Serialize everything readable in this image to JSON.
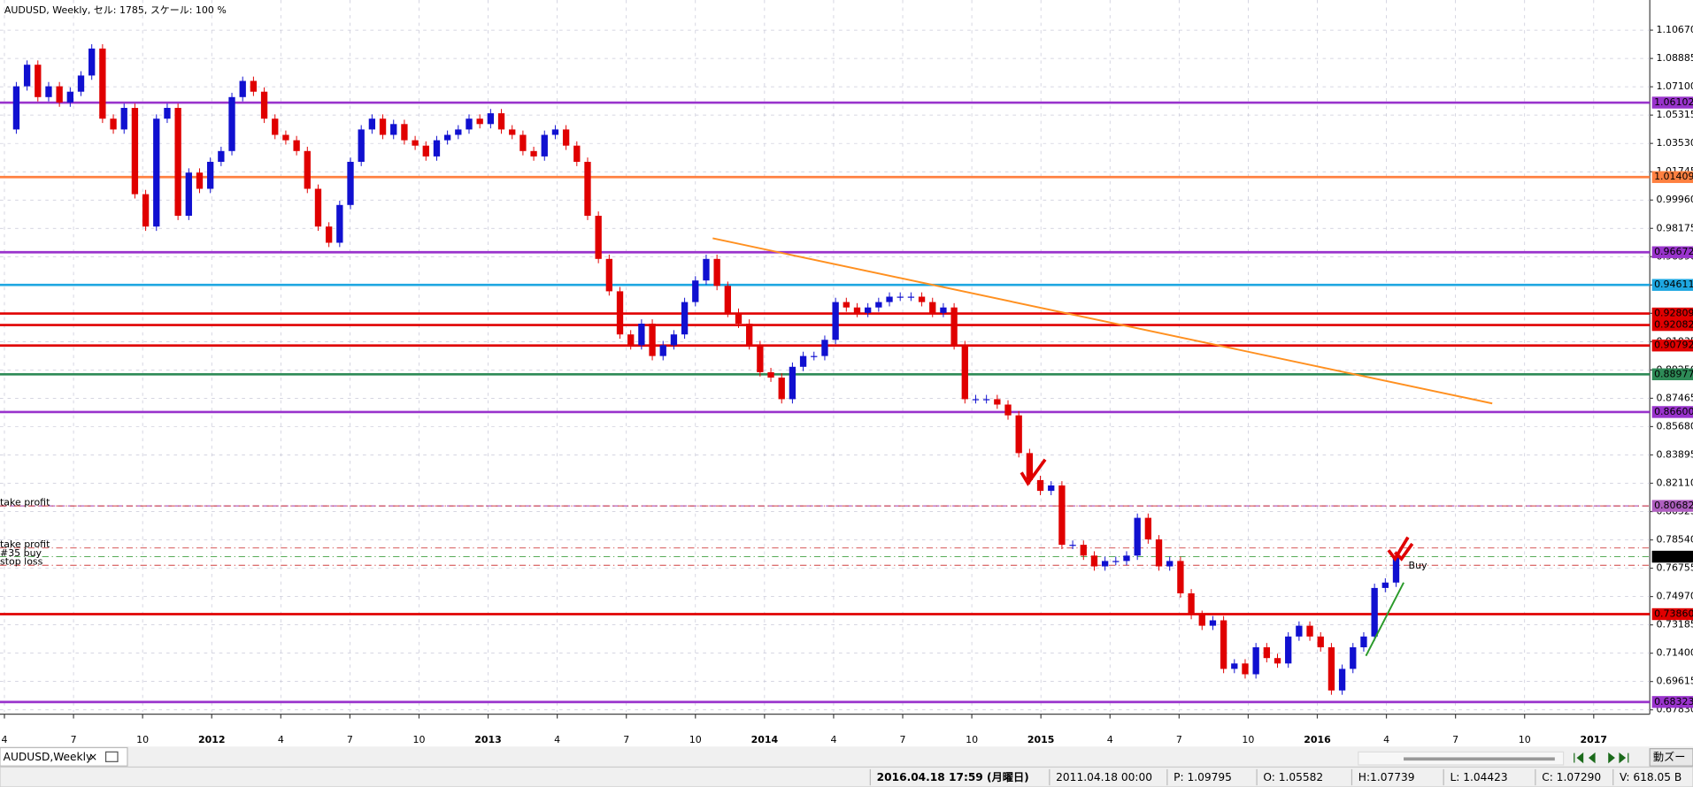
{
  "chart_data": {
    "type": "candlestick",
    "title": "AUDUSD, Weekly, セル: 1785, スケール: 100 %",
    "up_color": "#1010d0",
    "down_color": "#e00000",
    "xlim": [
      2011.234,
      2017.203
    ],
    "ylim": [
      0.6769,
      1.1257
    ],
    "grid": true,
    "xticks": [
      {
        "value": 2011.25,
        "label": "4"
      },
      {
        "value": 2011.5,
        "label": "7"
      },
      {
        "value": 2011.75,
        "label": "10"
      },
      2012,
      {
        "value": 2012.25,
        "label": "4"
      },
      {
        "value": 2012.5,
        "label": "7"
      },
      {
        "value": 2012.75,
        "label": "10"
      },
      2013,
      {
        "value": 2013.25,
        "label": "4"
      },
      {
        "value": 2013.5,
        "label": "7"
      },
      {
        "value": 2013.75,
        "label": "10"
      },
      2014,
      {
        "value": 2014.25,
        "label": "4"
      },
      {
        "value": 2014.5,
        "label": "7"
      },
      {
        "value": 2014.75,
        "label": "10"
      },
      2015,
      {
        "value": 2015.25,
        "label": "4"
      },
      {
        "value": 2015.5,
        "label": "7"
      },
      {
        "value": 2015.75,
        "label": "10"
      },
      2016,
      {
        "value": 2016.25,
        "label": "4"
      },
      {
        "value": 2016.5,
        "label": "7"
      },
      {
        "value": 2016.75,
        "label": "10"
      },
      2017
    ],
    "yticks": [
      {
        "value": 1.1067,
        "label": "1.10670"
      },
      {
        "value": 1.08885,
        "label": "1.08885"
      },
      {
        "value": 1.071,
        "label": "1.07100"
      },
      {
        "value": 1.05315,
        "label": "1.05315"
      },
      {
        "value": 1.0353,
        "label": "1.03530"
      },
      {
        "value": 1.01745,
        "label": "1.01745"
      },
      {
        "value": 0.9996,
        "label": "0.99960"
      },
      {
        "value": 0.98175,
        "label": "0.98175"
      },
      {
        "value": 0.9639,
        "label": "0.96390"
      },
      {
        "value": 0.94605,
        "label": "0.94605"
      },
      {
        "value": 0.9282,
        "label": "0.92820"
      },
      {
        "value": 0.91035,
        "label": "0.91035"
      },
      {
        "value": 0.8925,
        "label": "0.89250"
      },
      {
        "value": 0.87465,
        "label": "0.87465"
      },
      {
        "value": 0.8568,
        "label": "0.85680"
      },
      {
        "value": 0.83895,
        "label": "0.83895"
      },
      {
        "value": 0.8211,
        "label": "0.82110"
      },
      {
        "value": 0.80325,
        "label": "0.80325"
      },
      {
        "value": 0.7854,
        "label": "0.78540"
      },
      {
        "value": 0.76755,
        "label": "0.76755"
      },
      {
        "value": 0.7497,
        "label": "0.74970"
      },
      {
        "value": 0.73185,
        "label": "0.73185"
      },
      {
        "value": 0.714,
        "label": "0.71400"
      },
      {
        "value": 0.69615,
        "label": "0.69615"
      },
      {
        "value": 0.6783,
        "label": "0.67830"
      }
    ],
    "x": [
      2011.254,
      2011.293,
      2011.332,
      2011.371,
      2011.41,
      2011.449,
      2011.488,
      2011.527,
      2011.566,
      2011.605,
      2011.644,
      2011.683,
      2011.722,
      2011.761,
      2011.8,
      2011.839,
      2011.878,
      2011.917,
      2011.956,
      2011.995,
      2012.034,
      2012.073,
      2012.112,
      2012.151,
      2012.19,
      2012.229,
      2012.268,
      2012.307,
      2012.346,
      2012.385,
      2012.424,
      2012.463,
      2012.502,
      2012.541,
      2012.58,
      2012.619,
      2012.658,
      2012.697,
      2012.736,
      2012.775,
      2012.814,
      2012.853,
      2012.892,
      2012.931,
      2012.97,
      2013.009,
      2013.048,
      2013.087,
      2013.126,
      2013.165,
      2013.204,
      2013.243,
      2013.282,
      2013.321,
      2013.36,
      2013.399,
      2013.438,
      2013.477,
      2013.516,
      2013.555,
      2013.594,
      2013.633,
      2013.672,
      2013.711,
      2013.75,
      2013.789,
      2013.828,
      2013.867,
      2013.906,
      2013.945,
      2013.984,
      2014.023,
      2014.062,
      2014.101,
      2014.14,
      2014.179,
      2014.218,
      2014.257,
      2014.296,
      2014.335,
      2014.374,
      2014.413,
      2014.452,
      2014.491,
      2014.53,
      2014.569,
      2014.608,
      2014.647,
      2014.686,
      2014.725,
      2014.764,
      2014.803,
      2014.842,
      2014.881,
      2014.92,
      2014.959,
      2014.998,
      2015.037,
      2015.076,
      2015.115,
      2015.154,
      2015.193,
      2015.232,
      2015.271,
      2015.31,
      2015.349,
      2015.388,
      2015.427,
      2015.466,
      2015.505,
      2015.544,
      2015.583,
      2015.622,
      2015.661,
      2015.7,
      2015.739,
      2015.778,
      2015.817,
      2015.856,
      2015.895,
      2015.934,
      2015.973,
      2016.012,
      2016.051,
      2016.09,
      2016.129,
      2016.168,
      2016.207,
      2016.246,
      2016.285
    ],
    "close": [
      1.0441,
      1.0713,
      1.0849,
      1.0645,
      1.0713,
      1.0611,
      1.0679,
      1.0781,
      1.0951,
      1.0509,
      1.0441,
      1.0577,
      1.0033,
      0.9829,
      1.0509,
      1.0577,
      0.9897,
      1.0169,
      1.0067,
      1.0237,
      1.0305,
      1.0645,
      1.0747,
      1.0679,
      1.0509,
      1.0407,
      1.0373,
      1.0305,
      1.0067,
      0.9829,
      0.9727,
      0.9965,
      1.0237,
      1.0441,
      1.0509,
      1.0407,
      1.0475,
      1.0373,
      1.0339,
      1.0271,
      1.0373,
      1.0407,
      1.0441,
      1.0509,
      1.0475,
      1.0543,
      1.0441,
      1.0407,
      1.0305,
      1.0271,
      1.0407,
      1.0441,
      1.0339,
      1.0237,
      0.9897,
      0.9625,
      0.9421,
      0.9149,
      0.9081,
      0.9217,
      0.9013,
      0.9081,
      0.9149,
      0.9353,
      0.9489,
      0.9625,
      0.9455,
      0.9285,
      0.9217,
      0.9081,
      0.8911,
      0.8877,
      0.8741,
      0.8945,
      0.9013,
      0.9013,
      0.9115,
      0.9353,
      0.9319,
      0.9285,
      0.9319,
      0.9353,
      0.9387,
      0.9387,
      0.9387,
      0.9353,
      0.9285,
      0.9319,
      0.9081,
      0.8741,
      0.8741,
      0.8741,
      0.8707,
      0.8639,
      0.8401,
      0.8231,
      0.8163,
      0.8197,
      0.7823,
      0.7823,
      0.7755,
      0.7687,
      0.7721,
      0.7721,
      0.7755,
      0.7993,
      0.7857,
      0.7687,
      0.7721,
      0.7517,
      0.7381,
      0.7313,
      0.7347,
      0.7041,
      0.7075,
      0.7007,
      0.7177,
      0.7109,
      0.7075,
      0.7245,
      0.7313,
      0.7245,
      0.7177,
      0.6905,
      0.7041,
      0.7177,
      0.7245,
      0.7551,
      0.7585,
      0.7755
    ],
    "levels": [
      {
        "price": 1.06102,
        "color": "#9933cc",
        "text_color": "#000000"
      },
      {
        "price": 1.01409,
        "color": "#ff8040",
        "text_color": "#000000"
      },
      {
        "price": 0.96672,
        "color": "#9933cc",
        "text_color": "#000000"
      },
      {
        "price": 0.94611,
        "color": "#1ea7e1",
        "text_color": "#000000"
      },
      {
        "price": 0.92809,
        "color": "#e00000",
        "text_color": "#ffffff"
      },
      {
        "price": 0.92082,
        "color": "#e00000",
        "text_color": "#ffffff"
      },
      {
        "price": 0.90792,
        "color": "#e00000",
        "text_color": "#ffffff"
      },
      {
        "price": 0.88977,
        "color": "#2e8b57",
        "text_color": "#000000"
      },
      {
        "price": 0.866,
        "label": "0.86600",
        "color": "#9933cc",
        "text_color": "#000000"
      },
      {
        "price": 0.80682,
        "color": "#b060c0",
        "text_color": "#000000",
        "dashed": true
      },
      {
        "price": 0.7386,
        "label": "0.73860",
        "color": "#e00000",
        "text_color": "#ffffff"
      },
      {
        "price": 0.68323,
        "color": "#9933cc",
        "text_color": "#000000"
      }
    ],
    "orders": [
      {
        "label": "take profit",
        "price": 0.8068,
        "color": "#d04040"
      },
      {
        "label": "take profit",
        "price": 0.7803,
        "color": "#d04040"
      },
      {
        "label": "#35 buy",
        "price": 0.7748,
        "color": "#40a040"
      },
      {
        "label": "stop loss",
        "price": 0.7694,
        "color": "#d04040"
      }
    ],
    "current_price": {
      "price": 0.77481,
      "label": "0.77481"
    },
    "trendlines": [
      {
        "color": "#ff9020",
        "x": [
          2013.8125,
          2016.633
        ],
        "y": [
          0.9755,
          0.8714
        ]
      },
      {
        "color": "#2a9a2a",
        "x": [
          2016.176,
          2016.3125
        ],
        "y": [
          0.7123,
          0.7585
        ]
      }
    ],
    "annotation": {
      "text": "Buy",
      "x": 2016.33,
      "price": 0.769
    }
  },
  "tab": {
    "title": "AUDUSD,Weekly",
    "close": "×"
  },
  "zoom_button": "動ズー",
  "status_bar": [
    "2016.04.18 17:59 (月曜日)",
    "2011.04.18 00:00",
    "P: 1.09795",
    "O: 1.05582",
    "H:1.07739",
    "L: 1.04423",
    "C: 1.07290",
    "V: 618.05 B"
  ]
}
